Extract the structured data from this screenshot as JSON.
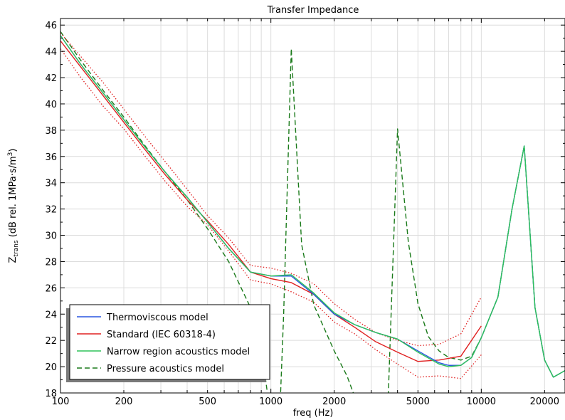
{
  "chart_data": {
    "type": "line",
    "title": "Transfer Impedance",
    "xlabel": "freq (Hz)",
    "ylabel": {
      "main": "Z",
      "sub": "trans",
      "rest": " (dB rel. 1MPa·s/m",
      "sup": "3",
      "close": ")"
    },
    "x_scale": "log",
    "xlim": [
      100,
      25000
    ],
    "ylim": [
      18,
      46.5
    ],
    "grid": true,
    "x_ticks": [
      {
        "value": 100,
        "label": "100"
      },
      {
        "value": 200,
        "label": "200"
      },
      {
        "value": 500,
        "label": "500"
      },
      {
        "value": 1000,
        "label": "1000"
      },
      {
        "value": 2000,
        "label": "2000"
      },
      {
        "value": 5000,
        "label": "5000"
      },
      {
        "value": 10000,
        "label": "10000"
      },
      {
        "value": 20000,
        "label": "20000"
      }
    ],
    "y_ticks": [
      {
        "value": 18,
        "label": "18"
      },
      {
        "value": 20,
        "label": "20"
      },
      {
        "value": 22,
        "label": "22"
      },
      {
        "value": 24,
        "label": "24"
      },
      {
        "value": 26,
        "label": "26"
      },
      {
        "value": 28,
        "label": "28"
      },
      {
        "value": 30,
        "label": "30"
      },
      {
        "value": 32,
        "label": "32"
      },
      {
        "value": 34,
        "label": "34"
      },
      {
        "value": 36,
        "label": "36"
      },
      {
        "value": 38,
        "label": "38"
      },
      {
        "value": 40,
        "label": "40"
      },
      {
        "value": 42,
        "label": "42"
      },
      {
        "value": 44,
        "label": "44"
      },
      {
        "value": 46,
        "label": "46"
      }
    ],
    "legend": {
      "placement": "bottom-left",
      "entries": [
        {
          "name": "Thermoviscous model",
          "color": "#2855e0",
          "dash": "solid"
        },
        {
          "name": "Standard (IEC 60318-4)",
          "color": "#e02020",
          "dash": "solid"
        },
        {
          "name": "Narrow region acoustics model",
          "color": "#2ec25a",
          "dash": "solid"
        },
        {
          "name": "Pressure acoustics model",
          "color": "#1a7a1a",
          "dash": "dashed"
        }
      ]
    },
    "series": [
      {
        "name": "Thermoviscous model",
        "color": "#2855e0",
        "dash": "solid",
        "x": [
          100,
          125,
          160,
          200,
          250,
          315,
          400,
          500,
          630,
          800,
          1000,
          1250,
          1600,
          2000,
          2500,
          3150,
          4000,
          5000,
          6300,
          7000,
          8000,
          9000,
          10000,
          12000,
          14000,
          16000,
          18000,
          20000,
          22000,
          25000
        ],
        "y": [
          45.2,
          43.0,
          40.8,
          38.8,
          36.8,
          34.8,
          32.9,
          31.0,
          29.0,
          27.2,
          26.9,
          26.9,
          25.5,
          24.0,
          23.2,
          22.6,
          22.1,
          21.2,
          20.3,
          20.1,
          20.1,
          20.7,
          22.2,
          25.3,
          32.0,
          36.8,
          24.5,
          20.5,
          19.2,
          19.7
        ]
      },
      {
        "name": "Standard (IEC 60318-4)",
        "color": "#e02020",
        "dash": "solid",
        "x": [
          100,
          125,
          160,
          200,
          250,
          315,
          400,
          500,
          630,
          800,
          1000,
          1250,
          1600,
          2000,
          2500,
          3150,
          4000,
          5000,
          6300,
          8000,
          10000
        ],
        "y": [
          44.8,
          42.8,
          40.6,
          38.6,
          36.6,
          34.6,
          32.7,
          31.1,
          29.3,
          27.2,
          26.7,
          26.4,
          25.5,
          24.0,
          23.0,
          21.9,
          21.1,
          20.4,
          20.5,
          20.8,
          23.1
        ]
      },
      {
        "name": "Standard (IEC 60318-4) upper tolerance",
        "color": "#e02020",
        "dash": "dotted",
        "legend": false,
        "x": [
          100,
          125,
          160,
          200,
          250,
          315,
          400,
          500,
          630,
          800,
          1000,
          1250,
          1600,
          2000,
          2500,
          3150,
          4000,
          5000,
          6300,
          8000,
          10000
        ],
        "y": [
          45.4,
          43.6,
          41.6,
          39.6,
          37.6,
          35.6,
          33.5,
          31.5,
          29.8,
          27.7,
          27.5,
          27.1,
          26.3,
          24.8,
          23.6,
          22.6,
          22.0,
          21.6,
          21.7,
          22.5,
          25.3
        ]
      },
      {
        "name": "Standard (IEC 60318-4) lower tolerance",
        "color": "#e02020",
        "dash": "dotted",
        "legend": false,
        "x": [
          100,
          125,
          160,
          200,
          250,
          315,
          400,
          500,
          630,
          800,
          1000,
          1250,
          1600,
          2000,
          2500,
          3150,
          4000,
          5000,
          6300,
          8000,
          10000
        ],
        "y": [
          44.2,
          42.0,
          39.8,
          38.1,
          36.1,
          34.1,
          32.2,
          30.8,
          28.8,
          26.6,
          26.3,
          25.7,
          24.9,
          23.4,
          22.5,
          21.3,
          20.2,
          19.2,
          19.3,
          19.1,
          20.9
        ]
      },
      {
        "name": "Narrow region acoustics model",
        "color": "#2ec25a",
        "dash": "solid",
        "x": [
          100,
          125,
          160,
          200,
          250,
          315,
          400,
          500,
          630,
          800,
          1000,
          1250,
          1600,
          2000,
          2500,
          3150,
          4000,
          5000,
          6300,
          7000,
          8000,
          9000,
          10000,
          12000,
          14000,
          16000,
          18000,
          20000,
          22000,
          25000
        ],
        "y": [
          45.2,
          43.0,
          40.8,
          38.8,
          36.8,
          34.8,
          32.9,
          31.0,
          29.0,
          27.2,
          26.9,
          27.0,
          25.6,
          24.1,
          23.2,
          22.6,
          22.1,
          21.1,
          20.2,
          20.0,
          20.1,
          20.7,
          22.2,
          25.3,
          32.0,
          36.8,
          24.5,
          20.5,
          19.2,
          19.7
        ]
      },
      {
        "name": "Pressure acoustics model",
        "color": "#1a7a1a",
        "dash": "dashed",
        "x": [
          100,
          125,
          160,
          200,
          250,
          315,
          400,
          500,
          630,
          800,
          900,
          1000,
          1100,
          1150,
          1250,
          1400,
          1600,
          2000,
          2300,
          2600,
          3600,
          4000,
          4500,
          5000,
          5600,
          6300,
          7000,
          8000,
          9000,
          10000,
          12000,
          14000,
          16000,
          18000,
          20000,
          22000,
          25000
        ],
        "y": [
          45.5,
          43.3,
          41.0,
          39.0,
          36.9,
          34.8,
          32.7,
          30.5,
          28.0,
          24.5,
          21.5,
          16.0,
          16.0,
          24.0,
          44.2,
          29.3,
          24.7,
          21.2,
          19.3,
          17.0,
          17.0,
          38.1,
          29.5,
          24.8,
          22.3,
          21.2,
          20.7,
          20.5,
          20.8,
          22.2,
          25.3,
          32.0,
          36.8,
          24.5,
          20.5,
          19.2,
          19.7
        ]
      }
    ]
  }
}
